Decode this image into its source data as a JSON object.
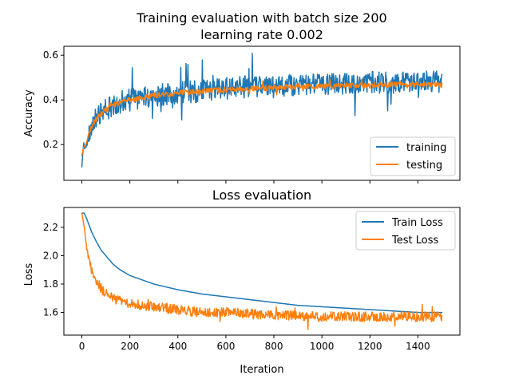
{
  "colors": {
    "training": "#1f77b4",
    "testing": "#ff7f0e"
  },
  "chart_data": [
    {
      "type": "line",
      "title": "Training evaluation with batch size 200\nlearning rate 0.002",
      "xlabel": "",
      "ylabel": "Accuracy",
      "xlim": [
        -75,
        1575
      ],
      "ylim": [
        0.04,
        0.64
      ],
      "xticks": [
        0,
        200,
        400,
        600,
        800,
        1000,
        1200,
        1400
      ],
      "xtick_labels_visible": false,
      "yticks": [
        0.2,
        0.4,
        0.6
      ],
      "ytick_labels": [
        "0.2",
        "0.4",
        "0.6"
      ],
      "grid": false,
      "legend": "lower-right",
      "series": [
        {
          "name": "training",
          "color": "#1f77b4",
          "noise": 0.05,
          "x": [
            0,
            5,
            15,
            30,
            50,
            80,
            120,
            160,
            200,
            250,
            300,
            400,
            500,
            600,
            700,
            800,
            900,
            1000,
            1100,
            1200,
            1300,
            1400,
            1500
          ],
          "y": [
            0.1,
            0.18,
            0.2,
            0.25,
            0.3,
            0.34,
            0.37,
            0.39,
            0.4,
            0.41,
            0.42,
            0.43,
            0.44,
            0.45,
            0.46,
            0.46,
            0.47,
            0.47,
            0.47,
            0.48,
            0.48,
            0.48,
            0.48
          ]
        },
        {
          "name": "testing",
          "color": "#ff7f0e",
          "noise": 0.012,
          "x": [
            0,
            5,
            15,
            30,
            50,
            80,
            120,
            160,
            200,
            250,
            300,
            400,
            500,
            600,
            700,
            800,
            900,
            1000,
            1100,
            1200,
            1300,
            1400,
            1500
          ],
          "y": [
            0.15,
            0.18,
            0.2,
            0.25,
            0.3,
            0.34,
            0.37,
            0.39,
            0.4,
            0.41,
            0.42,
            0.43,
            0.44,
            0.445,
            0.45,
            0.455,
            0.46,
            0.46,
            0.465,
            0.465,
            0.47,
            0.47,
            0.465
          ]
        }
      ]
    },
    {
      "type": "line",
      "title": "Loss evaluation",
      "xlabel": "Iteration",
      "ylabel": "Loss",
      "xlim": [
        -75,
        1575
      ],
      "ylim": [
        1.44,
        2.34
      ],
      "xticks": [
        0,
        200,
        400,
        600,
        800,
        1000,
        1200,
        1400
      ],
      "xtick_labels": [
        "0",
        "200",
        "400",
        "600",
        "800",
        "1000",
        "1200",
        "1400"
      ],
      "yticks": [
        1.6,
        1.8,
        2.0,
        2.2
      ],
      "ytick_labels": [
        "1.6",
        "1.8",
        "2.0",
        "2.2"
      ],
      "grid": false,
      "legend": "top-right",
      "series": [
        {
          "name": "Train Loss",
          "color": "#1f77b4",
          "noise": 0,
          "x": [
            0,
            10,
            20,
            40,
            60,
            80,
            100,
            130,
            160,
            200,
            250,
            300,
            400,
            500,
            600,
            700,
            800,
            900,
            1000,
            1100,
            1200,
            1300,
            1400,
            1500
          ],
          "y": [
            2.3,
            2.3,
            2.26,
            2.17,
            2.1,
            2.04,
            2.0,
            1.94,
            1.9,
            1.86,
            1.83,
            1.8,
            1.76,
            1.73,
            1.71,
            1.69,
            1.67,
            1.65,
            1.64,
            1.63,
            1.62,
            1.61,
            1.6,
            1.6
          ]
        },
        {
          "name": "Test Loss",
          "color": "#ff7f0e",
          "noise": 0.035,
          "x": [
            0,
            10,
            20,
            40,
            60,
            80,
            100,
            130,
            160,
            200,
            250,
            300,
            400,
            500,
            600,
            700,
            800,
            900,
            1000,
            1100,
            1200,
            1300,
            1400,
            1500
          ],
          "y": [
            2.3,
            2.2,
            2.05,
            1.9,
            1.82,
            1.77,
            1.73,
            1.7,
            1.68,
            1.66,
            1.65,
            1.64,
            1.62,
            1.6,
            1.6,
            1.59,
            1.58,
            1.58,
            1.57,
            1.57,
            1.57,
            1.57,
            1.57,
            1.57
          ]
        }
      ]
    }
  ]
}
